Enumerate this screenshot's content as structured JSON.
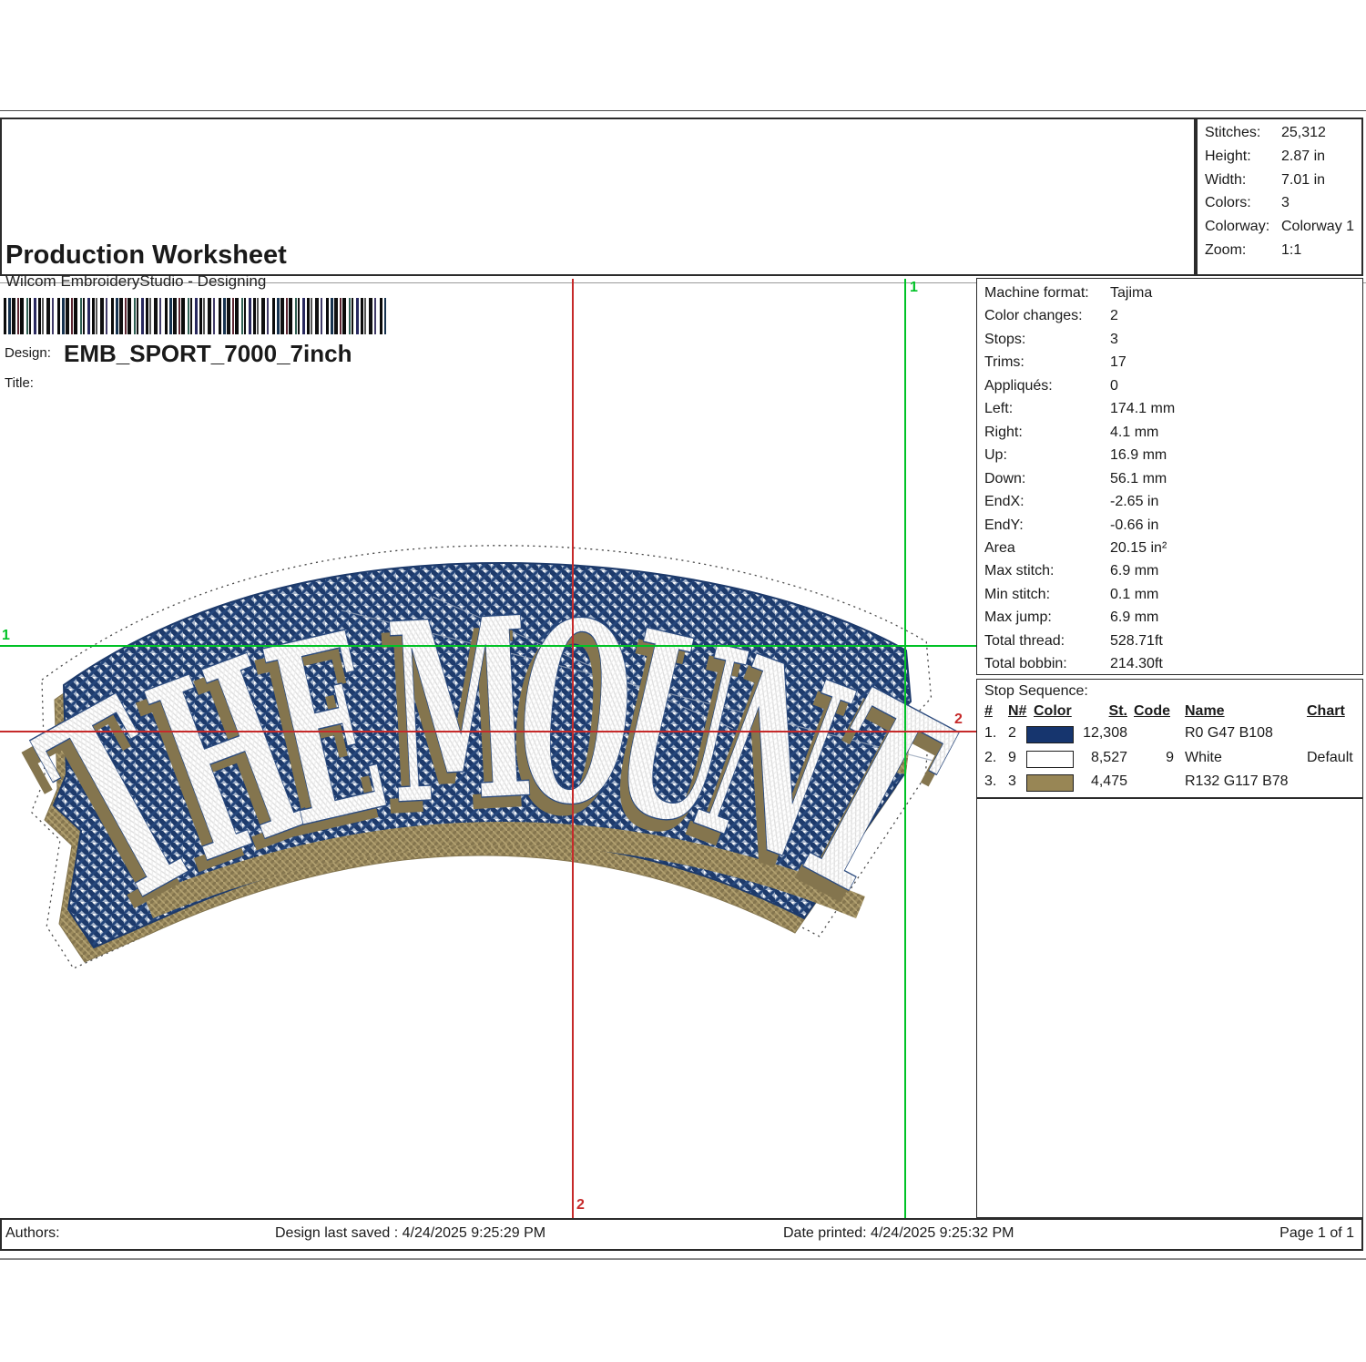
{
  "header": {
    "title": "Production Worksheet",
    "subtitle": "Wilcom EmbroideryStudio - Designing",
    "design_label": "Design:",
    "design_name": "EMB_SPORT_7000_7inch",
    "title_label": "Title:"
  },
  "summary": {
    "rows": [
      {
        "label": "Stitches:",
        "value": "25,312"
      },
      {
        "label": "Height:",
        "value": "2.87 in"
      },
      {
        "label": "Width:",
        "value": "7.01 in"
      },
      {
        "label": "Colors:",
        "value": "3"
      },
      {
        "label": "Colorway:",
        "value": "Colorway 1"
      },
      {
        "label": "Zoom:",
        "value": "1:1"
      }
    ]
  },
  "machine": {
    "rows": [
      {
        "label": "Machine format:",
        "value": "Tajima"
      },
      {
        "label": "Color changes:",
        "value": "2"
      },
      {
        "label": "Stops:",
        "value": "3"
      },
      {
        "label": "Trims:",
        "value": "17"
      },
      {
        "label": "Appliqués:",
        "value": "0"
      },
      {
        "label": "Left:",
        "value": "174.1 mm"
      },
      {
        "label": "Right:",
        "value": "4.1 mm"
      },
      {
        "label": "Up:",
        "value": "16.9 mm"
      },
      {
        "label": "Down:",
        "value": "56.1 mm"
      },
      {
        "label": "EndX:",
        "value": "-2.65 in"
      },
      {
        "label": "EndY:",
        "value": "-0.66 in"
      },
      {
        "label": "Area",
        "value": "20.15 in²"
      },
      {
        "label": "Max stitch:",
        "value": "6.9 mm"
      },
      {
        "label": "Min stitch:",
        "value": "0.1 mm"
      },
      {
        "label": "Max jump:",
        "value": "6.9 mm"
      },
      {
        "label": "Total thread:",
        "value": "528.71ft"
      },
      {
        "label": "Total bobbin:",
        "value": "214.30ft"
      }
    ]
  },
  "stop_sequence": {
    "title": "Stop Sequence:",
    "columns": {
      "num": "#",
      "n": "N#",
      "color": "Color",
      "st": "St.",
      "code": "Code",
      "name": "Name",
      "chart": "Chart"
    },
    "rows": [
      {
        "num": "1.",
        "n": "2",
        "swatch": "#16356e",
        "st": "12,308",
        "code": "",
        "name": "R0 G47 B108",
        "chart": ""
      },
      {
        "num": "2.",
        "n": "9",
        "swatch": "#ffffff",
        "st": "8,527",
        "code": "9",
        "name": "White",
        "chart": "Default"
      },
      {
        "num": "3.",
        "n": "3",
        "swatch": "#988655",
        "st": "4,475",
        "code": "",
        "name": "R132 G117 B78",
        "chart": ""
      }
    ]
  },
  "design": {
    "text": "THE MOUNT",
    "colors": {
      "blue": "#1d3a6b",
      "light_blue": "#a6b5cc",
      "white": "#ffffff",
      "tan": "#84754E",
      "tan_light": "#9c8b5e"
    }
  },
  "guides": {
    "green": "#00c226",
    "red": "#c62a2a",
    "v_green_label": "1",
    "h_green_label": "1",
    "v_red_label": "2",
    "h_red_label": "2"
  },
  "footer": {
    "authors_label": "Authors:",
    "saved": "Design last saved : 4/24/2025 9:25:29 PM",
    "printed": "Date printed: 4/24/2025 9:25:32 PM",
    "page": "Page 1 of 1"
  }
}
